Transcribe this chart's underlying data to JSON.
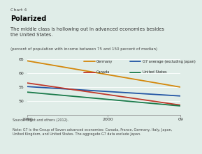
{
  "title_small": "Chart 4",
  "title_bold": "Polarized",
  "subtitle": "The middle class is hollowing out in advanced economies besides\nthe United States.",
  "ylabel_note": "(percent of population with income between 75 and 150 percent of median)",
  "source": "Source: Bigot and others (2012).",
  "note": "Note: G7 is the Group of Seven advanced economies: Canada, France, Germany, Italy, Japan,\nUnited Kingdom, and United States. The aggregate G7 data exclude Japan.",
  "xmin": 1990,
  "xmax": 2009,
  "ymin": 45,
  "ymax": 66,
  "yticks": [
    50,
    55,
    60,
    65
  ],
  "xticks": [
    1990,
    2000,
    2009
  ],
  "xtick_labels": [
    "1990",
    "2000",
    "09"
  ],
  "series": [
    {
      "name": "Germany",
      "x": [
        1990,
        2009
      ],
      "y": [
        64.5,
        55.0
      ],
      "color": "#d4870a",
      "linewidth": 1.3
    },
    {
      "name": "G7 average (excluding Japan)",
      "x": [
        1990,
        2009
      ],
      "y": [
        55.2,
        51.8
      ],
      "color": "#2255a4",
      "linewidth": 1.3
    },
    {
      "name": "Canada",
      "x": [
        1990,
        2009
      ],
      "y": [
        56.5,
        48.5
      ],
      "color": "#c0392b",
      "linewidth": 1.3
    },
    {
      "name": "United States",
      "x": [
        1990,
        2009
      ],
      "y": [
        53.2,
        48.2
      ],
      "color": "#1a7a4a",
      "linewidth": 1.3
    }
  ],
  "background_color": "#e0ede8",
  "legend_col1": [
    "Germany",
    "Canada"
  ],
  "legend_col2": [
    "G7 average (excluding Japan)",
    "United States"
  ]
}
